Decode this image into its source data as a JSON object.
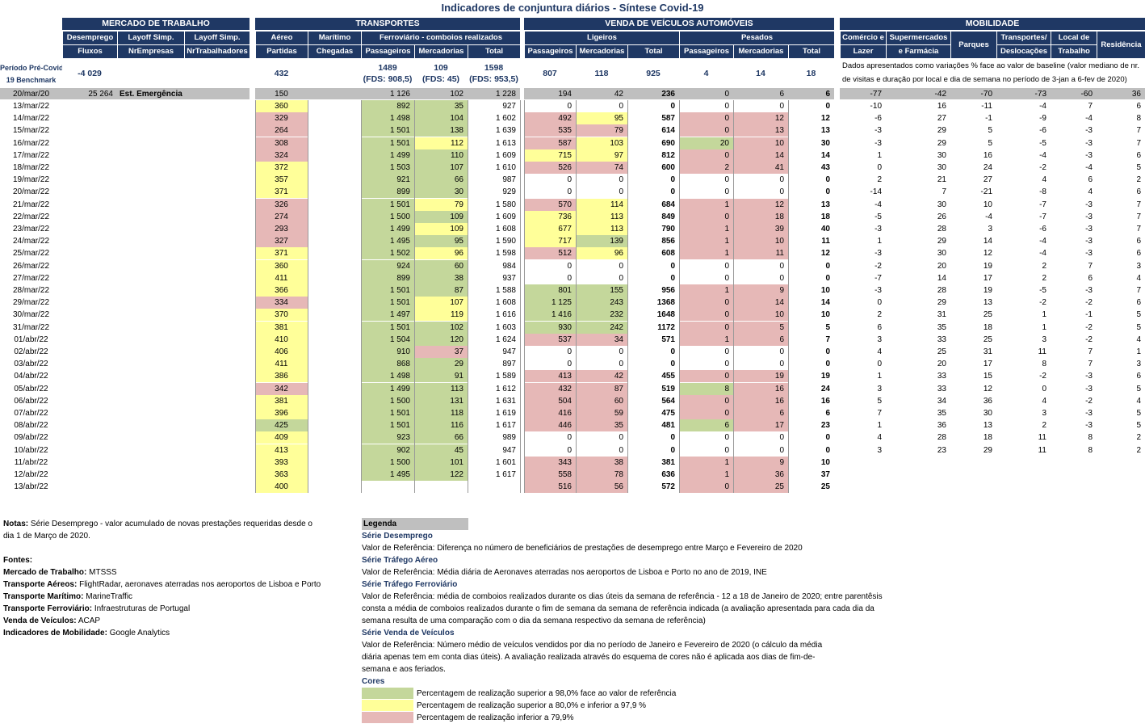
{
  "title": "Indicadores de conjuntura diários - Síntese Covid-19",
  "groups": {
    "mercado": "MERCADO DE TRABALHO",
    "transportes": "TRANSPORTES",
    "vendas": "VENDA DE VEÍCULOS AUTOMÓVEIS",
    "mobilidade": "MOBILIDADE"
  },
  "headers": {
    "desemprego": "Desemprego",
    "layoff1": "Layoff Simp.",
    "layoff2": "Layoff Simp.",
    "fluxos": "Fluxos",
    "nrempresas": "NrEmpresas",
    "nrtrab": "NrTrabalhadores",
    "aereo": "Aéreo",
    "maritimo": "Marítimo",
    "ferro": "Ferroviário - comboios realizados",
    "partidas": "Partidas",
    "chegadas": "Chegadas",
    "passageiros": "Passageiros",
    "mercadorias": "Mercadorias",
    "total": "Total",
    "ligeiros": "Ligeiros",
    "pesados": "Pesados",
    "comercio1": "Comércio e",
    "comercio2": "Lazer",
    "super1": "Supermercados",
    "super2": "e Farmácia",
    "parques": "Parques",
    "transp1": "Transportes/",
    "transp2": "Deslocações",
    "local1": "Local de",
    "local2": "Trabalho",
    "residencia": "Residência"
  },
  "benchmark": {
    "label1": "Período Pré-Covid-",
    "label2": "19 Benchmark",
    "desemprego": "-4 029",
    "aereo": "432",
    "fpass": "1489",
    "fpass2": "(FDS: 908,5)",
    "fmerc": "109",
    "fmerc2": "(FDS: 45)",
    "ftot": "1598",
    "ftot2": "(FDS: 953,5)",
    "lpass": "807",
    "lmerc": "118",
    "ltot": "925",
    "ppass": "4",
    "pmerc": "14",
    "ptot": "18",
    "mobnote": "Dados apresentados como variações % face ao valor de baseline (valor mediano de nr. de visitas e duração por local e dia de semana no período de 3-jan a 6-fev de 2020)"
  },
  "ref_row": {
    "date": "20/mar/20",
    "desemprego": "25 264",
    "label": "Est. Emergência",
    "aereo": "150",
    "fpass": "1 126",
    "fmerc": "102",
    "ftot": "1 228",
    "lpass": "194",
    "lmerc": "42",
    "ltot": "236",
    "ppass": "0",
    "pmerc": "6",
    "ptot": "6",
    "mob": [
      "-77",
      "-42",
      "-70",
      "-73",
      "-60",
      "36"
    ]
  },
  "colors": {
    "green": "#c4d79b",
    "yellow": "#ffff99",
    "red": "#e6b8b7",
    "navy": "#1f3864"
  },
  "rows": [
    {
      "d": "13/mar/22",
      "a": "360",
      "ac": "yl",
      "fp": "892",
      "fpc": "gr",
      "fm": "35",
      "fmc": "gr",
      "ft": "927",
      "lp": "0",
      "lpc": "",
      "lm": "0",
      "lmc": "",
      "lt": "0",
      "pp": "0",
      "ppc": "",
      "pm": "0",
      "pmc": "",
      "pt": "0",
      "m": [
        "-10",
        "16",
        "-11",
        "-4",
        "7",
        "6"
      ]
    },
    {
      "d": "14/mar/22",
      "a": "329",
      "ac": "rd",
      "fp": "1 498",
      "fpc": "gr",
      "fm": "104",
      "fmc": "gr",
      "ft": "1 602",
      "lp": "492",
      "lpc": "rd",
      "lm": "95",
      "lmc": "yl",
      "lt": "587",
      "pp": "0",
      "ppc": "rd",
      "pm": "12",
      "pmc": "rd",
      "pt": "12",
      "m": [
        "-6",
        "27",
        "-1",
        "-9",
        "-4",
        "8"
      ]
    },
    {
      "d": "15/mar/22",
      "a": "264",
      "ac": "rd",
      "fp": "1 501",
      "fpc": "gr",
      "fm": "138",
      "fmc": "gr",
      "ft": "1 639",
      "lp": "535",
      "lpc": "rd",
      "lm": "79",
      "lmc": "rd",
      "lt": "614",
      "pp": "0",
      "ppc": "rd",
      "pm": "13",
      "pmc": "rd",
      "pt": "13",
      "m": [
        "-3",
        "29",
        "5",
        "-6",
        "-3",
        "7"
      ]
    },
    {
      "d": "16/mar/22",
      "a": "308",
      "ac": "rd",
      "fp": "1 501",
      "fpc": "gr",
      "fm": "112",
      "fmc": "yl",
      "ft": "1 613",
      "lp": "587",
      "lpc": "rd",
      "lm": "103",
      "lmc": "yl",
      "lt": "690",
      "pp": "20",
      "ppc": "gr",
      "pm": "10",
      "pmc": "rd",
      "pt": "30",
      "m": [
        "-3",
        "29",
        "5",
        "-5",
        "-3",
        "7"
      ]
    },
    {
      "d": "17/mar/22",
      "a": "324",
      "ac": "rd",
      "fp": "1 499",
      "fpc": "gr",
      "fm": "110",
      "fmc": "gr",
      "ft": "1 609",
      "lp": "715",
      "lpc": "yl",
      "lm": "97",
      "lmc": "yl",
      "lt": "812",
      "pp": "0",
      "ppc": "rd",
      "pm": "14",
      "pmc": "rd",
      "pt": "14",
      "m": [
        "1",
        "30",
        "16",
        "-4",
        "-3",
        "6"
      ]
    },
    {
      "d": "18/mar/22",
      "a": "372",
      "ac": "yl",
      "fp": "1 503",
      "fpc": "gr",
      "fm": "107",
      "fmc": "gr",
      "ft": "1 610",
      "lp": "526",
      "lpc": "rd",
      "lm": "74",
      "lmc": "rd",
      "lt": "600",
      "pp": "2",
      "ppc": "rd",
      "pm": "41",
      "pmc": "rd",
      "pt": "43",
      "m": [
        "0",
        "30",
        "24",
        "-2",
        "-4",
        "5"
      ]
    },
    {
      "d": "19/mar/22",
      "a": "357",
      "ac": "yl",
      "fp": "921",
      "fpc": "gr",
      "fm": "66",
      "fmc": "gr",
      "ft": "987",
      "lp": "0",
      "lpc": "",
      "lm": "0",
      "lmc": "",
      "lt": "0",
      "pp": "0",
      "ppc": "",
      "pm": "0",
      "pmc": "",
      "pt": "0",
      "m": [
        "2",
        "21",
        "27",
        "4",
        "6",
        "2"
      ]
    },
    {
      "d": "20/mar/22",
      "a": "371",
      "ac": "yl",
      "fp": "899",
      "fpc": "gr",
      "fm": "30",
      "fmc": "gr",
      "ft": "929",
      "lp": "0",
      "lpc": "",
      "lm": "0",
      "lmc": "",
      "lt": "0",
      "pp": "0",
      "ppc": "",
      "pm": "0",
      "pmc": "",
      "pt": "0",
      "m": [
        "-14",
        "7",
        "-21",
        "-8",
        "4",
        "6"
      ]
    },
    {
      "d": "21/mar/22",
      "a": "326",
      "ac": "rd",
      "fp": "1 501",
      "fpc": "gr",
      "fm": "79",
      "fmc": "yl",
      "ft": "1 580",
      "lp": "570",
      "lpc": "rd",
      "lm": "114",
      "lmc": "yl",
      "lt": "684",
      "pp": "1",
      "ppc": "rd",
      "pm": "12",
      "pmc": "rd",
      "pt": "13",
      "m": [
        "-4",
        "30",
        "10",
        "-7",
        "-3",
        "7"
      ]
    },
    {
      "d": "22/mar/22",
      "a": "274",
      "ac": "rd",
      "fp": "1 500",
      "fpc": "gr",
      "fm": "109",
      "fmc": "gr",
      "ft": "1 609",
      "lp": "736",
      "lpc": "yl",
      "lm": "113",
      "lmc": "yl",
      "lt": "849",
      "pp": "0",
      "ppc": "rd",
      "pm": "18",
      "pmc": "rd",
      "pt": "18",
      "m": [
        "-5",
        "26",
        "-4",
        "-7",
        "-3",
        "7"
      ]
    },
    {
      "d": "23/mar/22",
      "a": "293",
      "ac": "rd",
      "fp": "1 499",
      "fpc": "gr",
      "fm": "109",
      "fmc": "yl",
      "ft": "1 608",
      "lp": "677",
      "lpc": "yl",
      "lm": "113",
      "lmc": "yl",
      "lt": "790",
      "pp": "1",
      "ppc": "rd",
      "pm": "39",
      "pmc": "rd",
      "pt": "40",
      "m": [
        "-3",
        "28",
        "3",
        "-6",
        "-3",
        "7"
      ]
    },
    {
      "d": "24/mar/22",
      "a": "327",
      "ac": "rd",
      "fp": "1 495",
      "fpc": "gr",
      "fm": "95",
      "fmc": "gr",
      "ft": "1 590",
      "lp": "717",
      "lpc": "yl",
      "lm": "139",
      "lmc": "gr",
      "lt": "856",
      "pp": "1",
      "ppc": "rd",
      "pm": "10",
      "pmc": "rd",
      "pt": "11",
      "m": [
        "1",
        "29",
        "14",
        "-4",
        "-3",
        "6"
      ]
    },
    {
      "d": "25/mar/22",
      "a": "371",
      "ac": "yl",
      "fp": "1 502",
      "fpc": "gr",
      "fm": "96",
      "fmc": "yl",
      "ft": "1 598",
      "lp": "512",
      "lpc": "rd",
      "lm": "96",
      "lmc": "yl",
      "lt": "608",
      "pp": "1",
      "ppc": "rd",
      "pm": "11",
      "pmc": "rd",
      "pt": "12",
      "m": [
        "-3",
        "30",
        "12",
        "-4",
        "-3",
        "6"
      ]
    },
    {
      "d": "26/mar/22",
      "a": "360",
      "ac": "yl",
      "fp": "924",
      "fpc": "gr",
      "fm": "60",
      "fmc": "gr",
      "ft": "984",
      "lp": "0",
      "lpc": "",
      "lm": "0",
      "lmc": "",
      "lt": "0",
      "pp": "0",
      "ppc": "",
      "pm": "0",
      "pmc": "",
      "pt": "0",
      "m": [
        "-2",
        "20",
        "19",
        "2",
        "7",
        "3"
      ]
    },
    {
      "d": "27/mar/22",
      "a": "411",
      "ac": "yl",
      "fp": "899",
      "fpc": "gr",
      "fm": "38",
      "fmc": "gr",
      "ft": "937",
      "lp": "0",
      "lpc": "",
      "lm": "0",
      "lmc": "",
      "lt": "0",
      "pp": "0",
      "ppc": "",
      "pm": "0",
      "pmc": "",
      "pt": "0",
      "m": [
        "-7",
        "14",
        "17",
        "2",
        "6",
        "4"
      ]
    },
    {
      "d": "28/mar/22",
      "a": "366",
      "ac": "yl",
      "fp": "1 501",
      "fpc": "gr",
      "fm": "87",
      "fmc": "gr",
      "ft": "1 588",
      "lp": "801",
      "lpc": "gr",
      "lm": "155",
      "lmc": "gr",
      "lt": "956",
      "pp": "1",
      "ppc": "rd",
      "pm": "9",
      "pmc": "rd",
      "pt": "10",
      "m": [
        "-3",
        "28",
        "19",
        "-5",
        "-3",
        "7"
      ]
    },
    {
      "d": "29/mar/22",
      "a": "334",
      "ac": "rd",
      "fp": "1 501",
      "fpc": "gr",
      "fm": "107",
      "fmc": "yl",
      "ft": "1 608",
      "lp": "1 125",
      "lpc": "gr",
      "lm": "243",
      "lmc": "gr",
      "lt": "1368",
      "pp": "0",
      "ppc": "rd",
      "pm": "14",
      "pmc": "rd",
      "pt": "14",
      "m": [
        "0",
        "29",
        "13",
        "-2",
        "-2",
        "6"
      ]
    },
    {
      "d": "30/mar/22",
      "a": "370",
      "ac": "yl",
      "fp": "1 497",
      "fpc": "gr",
      "fm": "119",
      "fmc": "yl",
      "ft": "1 616",
      "lp": "1 416",
      "lpc": "gr",
      "lm": "232",
      "lmc": "gr",
      "lt": "1648",
      "pp": "0",
      "ppc": "rd",
      "pm": "10",
      "pmc": "rd",
      "pt": "10",
      "m": [
        "2",
        "31",
        "25",
        "1",
        "-1",
        "5"
      ]
    },
    {
      "d": "31/mar/22",
      "a": "381",
      "ac": "yl",
      "fp": "1 501",
      "fpc": "gr",
      "fm": "102",
      "fmc": "gr",
      "ft": "1 603",
      "lp": "930",
      "lpc": "gr",
      "lm": "242",
      "lmc": "gr",
      "lt": "1172",
      "pp": "0",
      "ppc": "rd",
      "pm": "5",
      "pmc": "rd",
      "pt": "5",
      "m": [
        "6",
        "35",
        "18",
        "1",
        "-2",
        "5"
      ]
    },
    {
      "d": "01/abr/22",
      "a": "410",
      "ac": "yl",
      "fp": "1 504",
      "fpc": "gr",
      "fm": "120",
      "fmc": "gr",
      "ft": "1 624",
      "lp": "537",
      "lpc": "rd",
      "lm": "34",
      "lmc": "rd",
      "lt": "571",
      "pp": "1",
      "ppc": "rd",
      "pm": "6",
      "pmc": "rd",
      "pt": "7",
      "m": [
        "3",
        "33",
        "25",
        "3",
        "-2",
        "4"
      ]
    },
    {
      "d": "02/abr/22",
      "a": "406",
      "ac": "yl",
      "fp": "910",
      "fpc": "gr",
      "fm": "37",
      "fmc": "rd",
      "ft": "947",
      "lp": "0",
      "lpc": "",
      "lm": "0",
      "lmc": "",
      "lt": "0",
      "pp": "0",
      "ppc": "",
      "pm": "0",
      "pmc": "",
      "pt": "0",
      "m": [
        "4",
        "25",
        "31",
        "11",
        "7",
        "1"
      ]
    },
    {
      "d": "03/abr/22",
      "a": "411",
      "ac": "yl",
      "fp": "868",
      "fpc": "gr",
      "fm": "29",
      "fmc": "gr",
      "ft": "897",
      "lp": "0",
      "lpc": "",
      "lm": "0",
      "lmc": "",
      "lt": "0",
      "pp": "0",
      "ppc": "",
      "pm": "0",
      "pmc": "",
      "pt": "0",
      "m": [
        "0",
        "20",
        "17",
        "8",
        "7",
        "3"
      ]
    },
    {
      "d": "04/abr/22",
      "a": "386",
      "ac": "yl",
      "fp": "1 498",
      "fpc": "gr",
      "fm": "91",
      "fmc": "gr",
      "ft": "1 589",
      "lp": "413",
      "lpc": "rd",
      "lm": "42",
      "lmc": "rd",
      "lt": "455",
      "pp": "0",
      "ppc": "rd",
      "pm": "19",
      "pmc": "rd",
      "pt": "19",
      "m": [
        "1",
        "33",
        "15",
        "-2",
        "-3",
        "6"
      ]
    },
    {
      "d": "05/abr/22",
      "a": "342",
      "ac": "rd",
      "fp": "1 499",
      "fpc": "gr",
      "fm": "113",
      "fmc": "gr",
      "ft": "1 612",
      "lp": "432",
      "lpc": "rd",
      "lm": "87",
      "lmc": "rd",
      "lt": "519",
      "pp": "8",
      "ppc": "gr",
      "pm": "16",
      "pmc": "rd",
      "pt": "24",
      "m": [
        "3",
        "33",
        "12",
        "0",
        "-3",
        "5"
      ]
    },
    {
      "d": "06/abr/22",
      "a": "381",
      "ac": "yl",
      "fp": "1 500",
      "fpc": "gr",
      "fm": "131",
      "fmc": "gr",
      "ft": "1 631",
      "lp": "504",
      "lpc": "rd",
      "lm": "60",
      "lmc": "rd",
      "lt": "564",
      "pp": "0",
      "ppc": "rd",
      "pm": "16",
      "pmc": "rd",
      "pt": "16",
      "m": [
        "5",
        "34",
        "36",
        "4",
        "-2",
        "4"
      ]
    },
    {
      "d": "07/abr/22",
      "a": "396",
      "ac": "yl",
      "fp": "1 501",
      "fpc": "gr",
      "fm": "118",
      "fmc": "gr",
      "ft": "1 619",
      "lp": "416",
      "lpc": "rd",
      "lm": "59",
      "lmc": "rd",
      "lt": "475",
      "pp": "0",
      "ppc": "rd",
      "pm": "6",
      "pmc": "rd",
      "pt": "6",
      "m": [
        "7",
        "35",
        "30",
        "3",
        "-3",
        "5"
      ]
    },
    {
      "d": "08/abr/22",
      "a": "425",
      "ac": "gr",
      "fp": "1 501",
      "fpc": "gr",
      "fm": "116",
      "fmc": "gr",
      "ft": "1 617",
      "lp": "446",
      "lpc": "rd",
      "lm": "35",
      "lmc": "rd",
      "lt": "481",
      "pp": "6",
      "ppc": "gr",
      "pm": "17",
      "pmc": "rd",
      "pt": "23",
      "m": [
        "1",
        "36",
        "13",
        "2",
        "-3",
        "5"
      ]
    },
    {
      "d": "09/abr/22",
      "a": "409",
      "ac": "yl",
      "fp": "923",
      "fpc": "gr",
      "fm": "66",
      "fmc": "gr",
      "ft": "989",
      "lp": "0",
      "lpc": "",
      "lm": "0",
      "lmc": "",
      "lt": "0",
      "pp": "0",
      "ppc": "",
      "pm": "0",
      "pmc": "",
      "pt": "0",
      "m": [
        "4",
        "28",
        "18",
        "11",
        "8",
        "2"
      ]
    },
    {
      "d": "10/abr/22",
      "a": "413",
      "ac": "yl",
      "fp": "902",
      "fpc": "gr",
      "fm": "45",
      "fmc": "gr",
      "ft": "947",
      "lp": "0",
      "lpc": "",
      "lm": "0",
      "lmc": "",
      "lt": "0",
      "pp": "0",
      "ppc": "",
      "pm": "0",
      "pmc": "",
      "pt": "0",
      "m": [
        "3",
        "23",
        "29",
        "11",
        "8",
        "2"
      ]
    },
    {
      "d": "11/abr/22",
      "a": "393",
      "ac": "yl",
      "fp": "1 500",
      "fpc": "gr",
      "fm": "101",
      "fmc": "gr",
      "ft": "1 601",
      "lp": "343",
      "lpc": "rd",
      "lm": "38",
      "lmc": "rd",
      "lt": "381",
      "pp": "1",
      "ppc": "rd",
      "pm": "9",
      "pmc": "rd",
      "pt": "10",
      "m": []
    },
    {
      "d": "12/abr/22",
      "a": "363",
      "ac": "yl",
      "fp": "1 495",
      "fpc": "gr",
      "fm": "122",
      "fmc": "gr",
      "ft": "1 617",
      "lp": "558",
      "lpc": "rd",
      "lm": "78",
      "lmc": "rd",
      "lt": "636",
      "pp": "1",
      "ppc": "rd",
      "pm": "36",
      "pmc": "rd",
      "pt": "37",
      "m": []
    },
    {
      "d": "13/abr/22",
      "a": "400",
      "ac": "yl",
      "fp": "",
      "fpc": "",
      "fm": "",
      "fmc": "",
      "ft": "",
      "lp": "516",
      "lpc": "rd",
      "lm": "56",
      "lmc": "rd",
      "lt": "572",
      "pp": "0",
      "ppc": "rd",
      "pm": "25",
      "pmc": "rd",
      "pt": "25",
      "m": []
    }
  ],
  "notes": {
    "notas_label": "Notas:",
    "notas_text": "Série Desemprego - valor acumulado de novas prestações requeridas desde o",
    "notas_text2": "dia 1 de Março de 2020.",
    "fontes": "Fontes:",
    "sources": [
      {
        "k": "Mercado de Trabalho:",
        "v": "MTSSS"
      },
      {
        "k": "Transporte Aéreos:",
        "v": "FlightRadar, aeronaves aterradas nos aeroportos de Lisboa e Porto"
      },
      {
        "k": "Transporte Marítimo:",
        "v": "MarineTraffic"
      },
      {
        "k": "Transporte Ferroviário:",
        "v": "Infraestruturas de Portugal"
      },
      {
        "k": "Venda de Veículos:",
        "v": "ACAP"
      },
      {
        "k": "Indicadores de Mobilidade:",
        "v": "Google Analytics"
      }
    ]
  },
  "legend": {
    "title": "Legenda",
    "s1h": "Série Desemprego",
    "s1t": "Valor de Referência: Diferença no número de beneficiários de prestações de desemprego entre Março e Fevereiro de 2020",
    "s2h": "Série Tráfego Aéreo",
    "s2t": "Valor de Referência: Média diária de Aeronaves aterradas nos aeroportos de Lisboa e Porto no ano de 2019, INE",
    "s3h": "Série Tráfego Ferroviário",
    "s3t1": "Valor de Referência: média de comboios realizados durante os dias úteis da semana de referência - 12 a 18 de Janeiro de 2020; entre parentêsis",
    "s3t2": "consta a média de comboios realizados durante o fim de semana da semana de referência indicada (a avaliação apresentada para cada dia da",
    "s3t3": "semana resulta de uma comparação com o dia da semana respectivo da semana de referência)",
    "s4h": "Série Venda de Veículos",
    "s4t1": "Valor de Referência: Número médio de veículos vendidos por dia no período de Janeiro e Fevereiro de 2020 (o cálculo da média",
    "s4t2": "diária apenas tem em conta dias úteis). A avaliação realizada através do esquema de cores não é aplicada aos dias de fim-de-",
    "s4t3": "semana e aos feriados.",
    "cores": "Cores",
    "c1": "Percentagem de realização superior a 98,0% face ao valor de referência",
    "c2": "Percentagem de realização superior a 80,0% e inferior a 97,9 %",
    "c3": "Percentagem de realização inferior a 79,9%"
  }
}
